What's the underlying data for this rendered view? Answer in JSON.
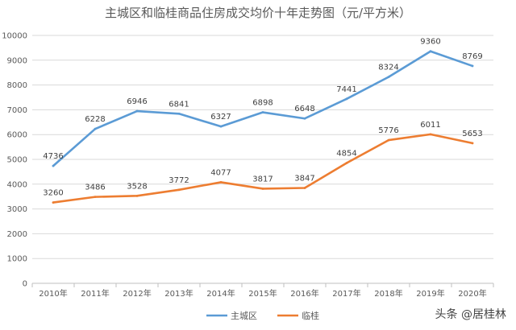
{
  "chart_data": {
    "type": "line",
    "title": "主城区和临桂商品住房成交均价十年走势图（元/平方米）",
    "categories": [
      "2010年",
      "2011年",
      "2012年",
      "2013年",
      "2014年",
      "2015年",
      "2016年",
      "2017年",
      "2018年",
      "2019年",
      "2020年"
    ],
    "series": [
      {
        "name": "主城区",
        "color": "#5b9bd5",
        "values": [
          4736,
          6228,
          6946,
          6841,
          6327,
          6898,
          6648,
          7441,
          8324,
          9360,
          8769
        ]
      },
      {
        "name": "临桂",
        "color": "#ed7d31",
        "values": [
          3260,
          3486,
          3528,
          3772,
          4077,
          3817,
          3847,
          4854,
          5776,
          6011,
          5653
        ]
      }
    ],
    "ylim": [
      0,
      10000
    ],
    "yticks": [
      0,
      1000,
      2000,
      3000,
      4000,
      5000,
      6000,
      7000,
      8000,
      9000,
      10000
    ],
    "grid": true,
    "legend_position": "bottom",
    "data_labels": true
  },
  "watermark": {
    "text": "头条 @居桂林"
  }
}
